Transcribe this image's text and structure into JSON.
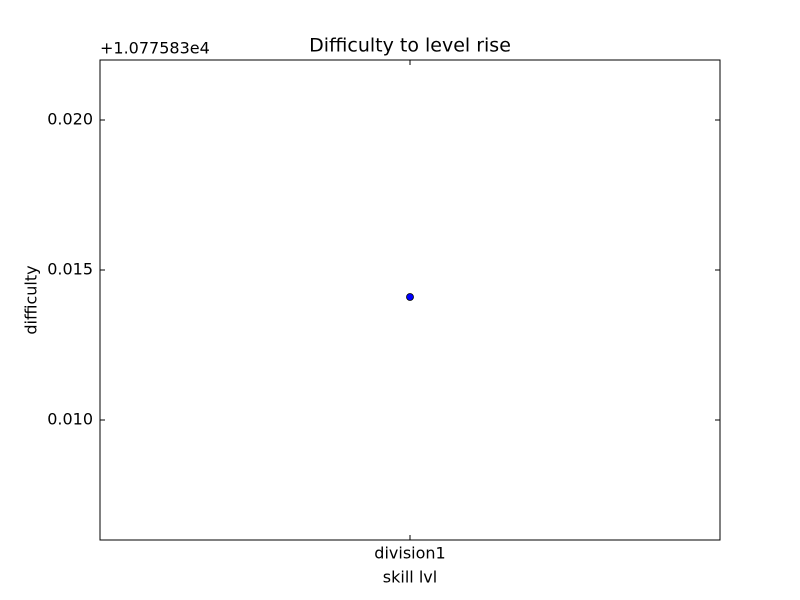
{
  "chart_data": {
    "type": "scatter",
    "title": "Difficulty to level rise",
    "x_label": "skill lvl",
    "y_label": "difficulty",
    "y_offset_label": "+1.077583e4",
    "categories": [
      "division1"
    ],
    "series": [
      {
        "values": [
          0.0141
        ],
        "color": "#0000ff"
      }
    ],
    "ylim": [
      0.006,
      0.022
    ],
    "yticks": [
      {
        "value": 0.01,
        "label": "0.010"
      },
      {
        "value": 0.015,
        "label": "0.015"
      },
      {
        "value": 0.02,
        "label": "0.020"
      }
    ],
    "grid": false
  }
}
